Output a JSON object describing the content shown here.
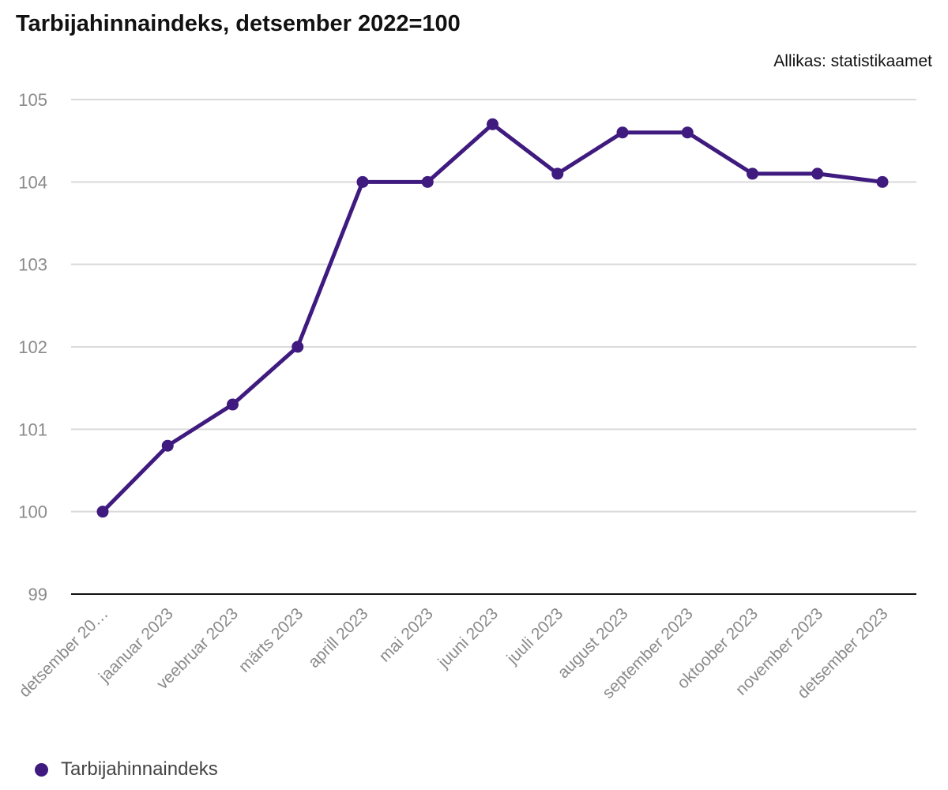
{
  "chart_data": {
    "type": "line",
    "title": "Tarbijahinnaindeks, detsember 2022=100",
    "source": "Allikas: statistikaamet",
    "categories": [
      "detsember 20…",
      "jaanuar 2023",
      "veebruar 2023",
      "märts 2023",
      "aprill 2023",
      "mai 2023",
      "juuni 2023",
      "juuli 2023",
      "august 2023",
      "september 2023",
      "oktoober 2023",
      "november 2023",
      "detsember 2023"
    ],
    "series": [
      {
        "name": "Tarbijahinnaindeks",
        "values": [
          100,
          100.8,
          101.3,
          102,
          104,
          104,
          104.7,
          104.1,
          104.6,
          104.6,
          104.1,
          104.1,
          104
        ],
        "color": "#3f1a7f"
      }
    ],
    "ylim": [
      99,
      105
    ],
    "yticks": [
      99,
      100,
      101,
      102,
      103,
      104,
      105
    ],
    "grid": true,
    "legend": "bottom-left"
  }
}
